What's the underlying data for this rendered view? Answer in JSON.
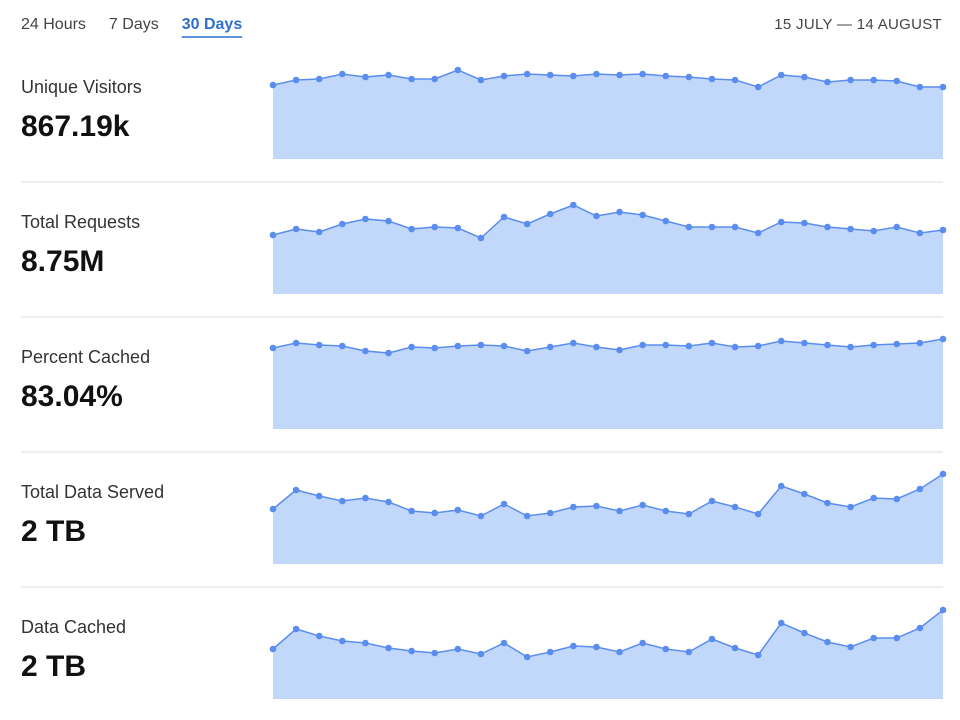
{
  "tabs": [
    {
      "label": "24 Hours",
      "selected": false
    },
    {
      "label": "7 Days",
      "selected": false
    },
    {
      "label": "30 Days",
      "selected": true
    }
  ],
  "date_range": "15 JULY — 14 AUGUST",
  "chart_data": [
    {
      "type": "area",
      "title": "Unique Visitors",
      "value_label": "867.19k",
      "color": "#5b8def",
      "fill": "#c2d8fb",
      "ylim": [
        0,
        95
      ],
      "values": [
        74,
        79,
        80,
        85,
        82,
        84,
        80,
        80,
        89,
        79,
        83,
        85,
        84,
        83,
        85,
        84,
        85,
        83,
        82,
        80,
        79,
        72,
        84,
        82,
        77,
        79,
        79,
        78,
        72,
        72
      ]
    },
    {
      "type": "area",
      "title": "Total Requests",
      "value_label": "8.75M",
      "color": "#5b8def",
      "fill": "#c2d8fb",
      "ylim": [
        0,
        95
      ],
      "values": [
        59,
        65,
        62,
        70,
        75,
        73,
        65,
        67,
        66,
        56,
        77,
        70,
        80,
        89,
        78,
        82,
        79,
        73,
        67,
        67,
        67,
        61,
        72,
        71,
        67,
        65,
        63,
        67,
        61,
        64
      ]
    },
    {
      "type": "area",
      "title": "Percent Cached",
      "value_label": "83.04%",
      "color": "#5b8def",
      "fill": "#c2d8fb",
      "ylim": [
        0,
        95
      ],
      "values": [
        81,
        86,
        84,
        83,
        78,
        76,
        82,
        81,
        83,
        84,
        83,
        78,
        82,
        86,
        82,
        79,
        84,
        84,
        83,
        86,
        82,
        83,
        88,
        86,
        84,
        82,
        84,
        85,
        86,
        90
      ]
    },
    {
      "type": "area",
      "title": "Total Data Served",
      "value_label": "2 TB",
      "color": "#5b8def",
      "fill": "#c2d8fb",
      "ylim": [
        0,
        95
      ],
      "values": [
        55,
        74,
        68,
        63,
        66,
        62,
        53,
        51,
        54,
        48,
        60,
        48,
        51,
        57,
        58,
        53,
        59,
        53,
        50,
        63,
        57,
        50,
        78,
        70,
        61,
        57,
        66,
        65,
        75,
        90
      ]
    },
    {
      "type": "area",
      "title": "Data Cached",
      "value_label": "2 TB",
      "color": "#5b8def",
      "fill": "#c2d8fb",
      "ylim": [
        0,
        95
      ],
      "values": [
        50,
        70,
        63,
        58,
        56,
        51,
        48,
        46,
        50,
        45,
        56,
        42,
        47,
        53,
        52,
        47,
        56,
        50,
        47,
        60,
        51,
        44,
        76,
        66,
        57,
        52,
        61,
        61,
        71,
        89
      ]
    }
  ]
}
